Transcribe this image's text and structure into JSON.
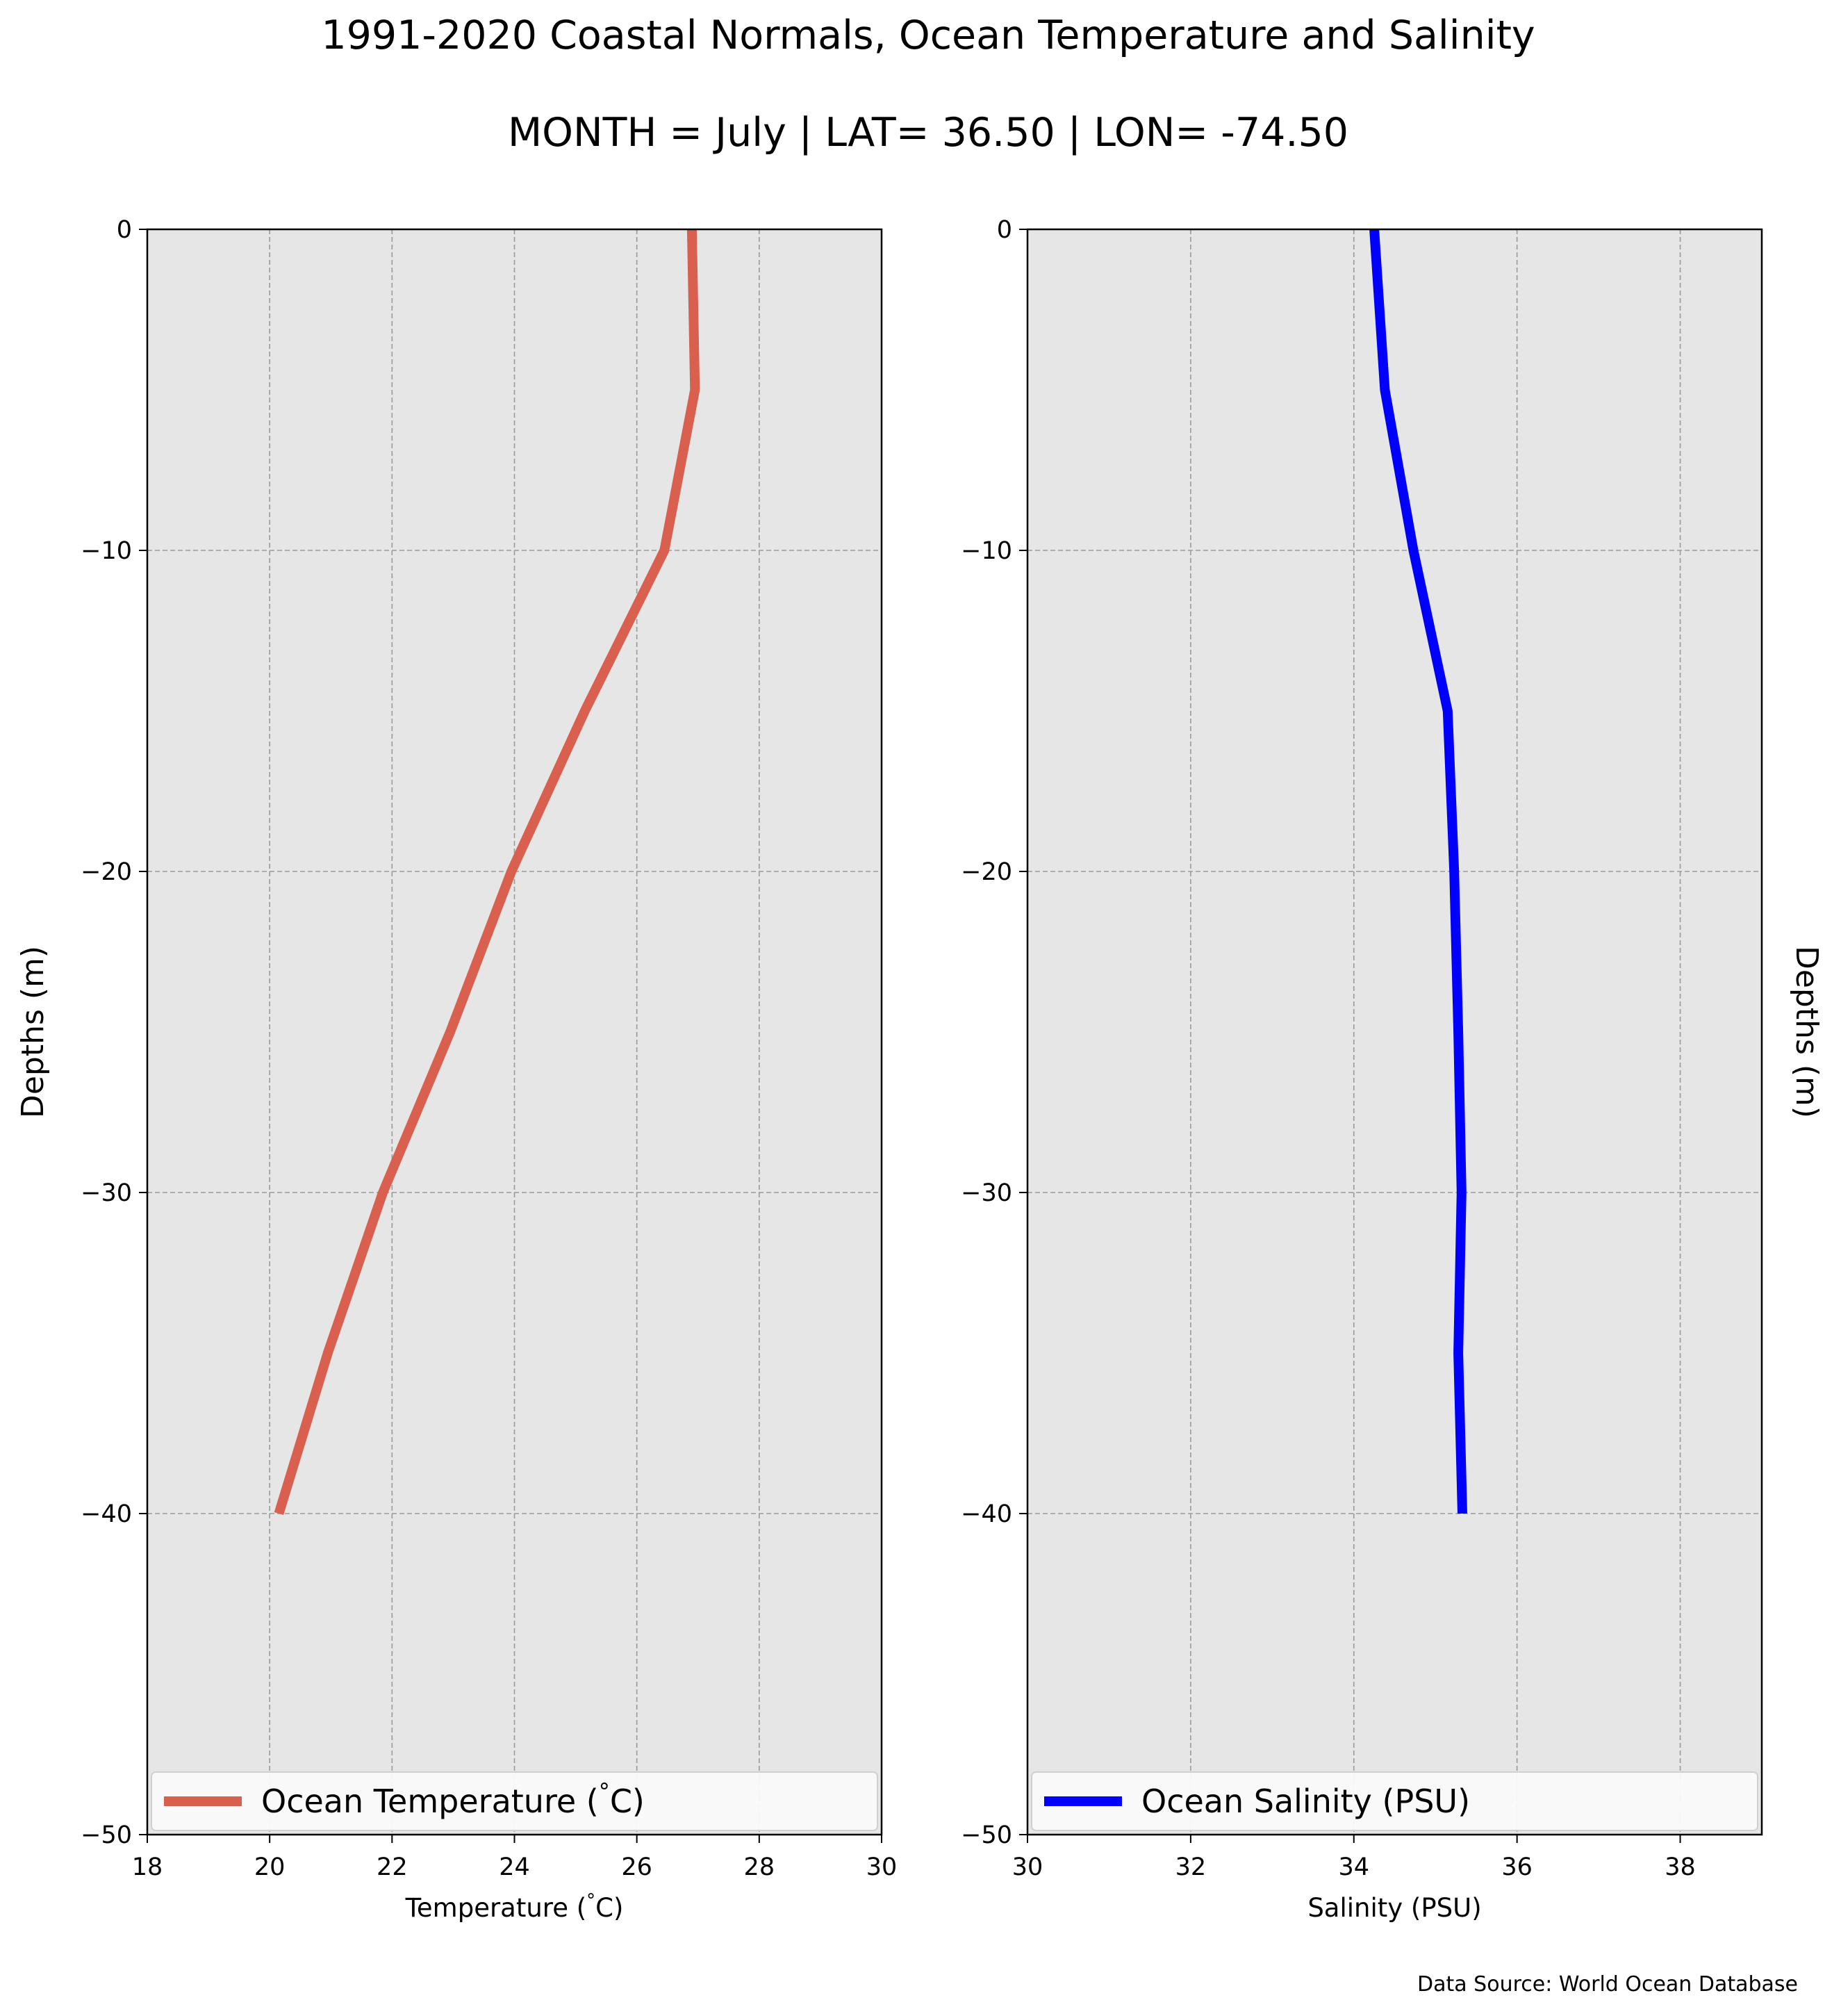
{
  "figure": {
    "title": "1991-2020 Coastal Normals, Ocean Temperature and Salinity",
    "subtitle": "MONTH = July | LAT= 36.50 | LON= -74.50",
    "source": "Data Source: World Ocean Database",
    "background": "#ffffff",
    "plot_background": "#e6e6e6"
  },
  "chart_data": [
    {
      "type": "line",
      "xlabel": "Temperature ($^\\circ$C)",
      "ylabel": "Depths (m)",
      "xlim": [
        18,
        30
      ],
      "ylim": [
        -50,
        0
      ],
      "xticks": [
        18,
        20,
        22,
        24,
        26,
        28,
        30
      ],
      "yticks": [
        0,
        -10,
        -20,
        -30,
        -40,
        -50
      ],
      "grid": true,
      "legend_position": "bottom",
      "series": [
        {
          "name": "Ocean Temperature ($^\\circ$C)",
          "color": "#d95f4e",
          "x": [
            26.9,
            26.95,
            26.45,
            25.15,
            23.95,
            22.95,
            21.85,
            20.95,
            20.15
          ],
          "y": [
            0,
            -5,
            -10,
            -15,
            -20,
            -25,
            -30,
            -35,
            -40
          ]
        }
      ]
    },
    {
      "type": "line",
      "xlabel": "Salinity (PSU)",
      "ylabel": "Depths (m)",
      "xlim": [
        30,
        39
      ],
      "ylim": [
        -50,
        0
      ],
      "xticks": [
        30,
        32,
        34,
        36,
        38
      ],
      "yticks": [
        0,
        -10,
        -20,
        -30,
        -40,
        -50
      ],
      "grid": true,
      "legend_position": "bottom",
      "series": [
        {
          "name": "Ocean Salinity (PSU)",
          "color": "#0000ff",
          "x": [
            34.25,
            34.38,
            34.73,
            35.15,
            35.23,
            35.28,
            35.32,
            35.28,
            35.33
          ],
          "y": [
            0,
            -5,
            -10,
            -15,
            -20,
            -25,
            -30,
            -35,
            -40
          ]
        }
      ]
    }
  ]
}
